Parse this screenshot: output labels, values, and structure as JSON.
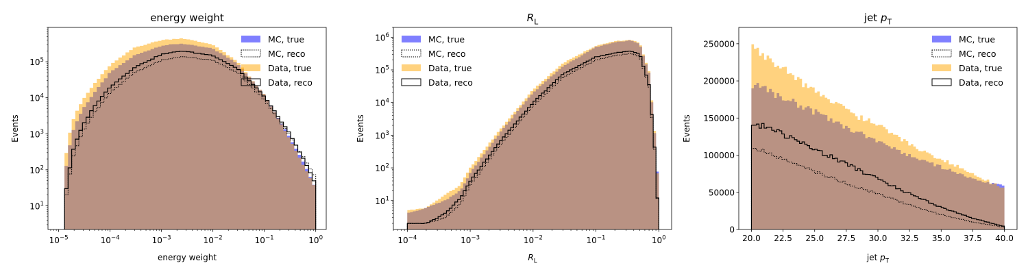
{
  "figure": {
    "background": "#ffffff"
  },
  "colors": {
    "mc_true": "#0000ff",
    "data_true": "#ffa500",
    "overlap": "#b99283",
    "reco_line": "#000000"
  },
  "legend_entries": [
    "MC, true",
    "MC, reco",
    "Data, true",
    "Data, reco"
  ],
  "chart_data": [
    {
      "type": "histogram",
      "title": "energy weight",
      "xlabel": "energy weight",
      "ylabel": "Events",
      "xscale": "log",
      "yscale": "log",
      "xlim": [
        6.2e-06,
        1.6
      ],
      "ylim": [
        2.2,
        900000.0
      ],
      "x_tick_labels": [
        "10^-5",
        "10^-4",
        "10^-3",
        "10^-2",
        "10^-1",
        "10^0"
      ],
      "y_tick_labels": [
        "10^1",
        "10^2",
        "10^3",
        "10^4",
        "10^5"
      ],
      "legend_position": "upper-right",
      "bin_range": [
        1.3e-05,
        1.0
      ],
      "series": [
        {
          "name": "MC, true",
          "style": "filled",
          "x": [
            1.3e-05,
            1.6e-05,
            2e-05,
            3e-05,
            5e-05,
            0.0001,
            0.0003,
            0.001,
            0.0025,
            0.01,
            0.03,
            0.1,
            0.3,
            0.6,
            1.0
          ],
          "y": [
            60,
            400,
            1500,
            5000,
            14000,
            50000,
            150000,
            280000,
            320000,
            230000,
            90000,
            12000,
            900,
            150,
            30
          ]
        },
        {
          "name": "MC, reco",
          "style": "dotted-step",
          "x": [
            1.3e-05,
            1.6e-05,
            2e-05,
            3e-05,
            5e-05,
            0.0001,
            0.0003,
            0.001,
            0.0025,
            0.01,
            0.03,
            0.1,
            0.3,
            0.6,
            1.0
          ],
          "y": [
            10,
            60,
            300,
            1200,
            4000,
            14000,
            50000,
            110000,
            140000,
            110000,
            50000,
            9000,
            1000,
            200,
            60
          ]
        },
        {
          "name": "Data, true",
          "style": "filled",
          "x": [
            1.3e-05,
            1.6e-05,
            2e-05,
            3e-05,
            5e-05,
            0.0001,
            0.0003,
            0.001,
            0.0025,
            0.01,
            0.03,
            0.1,
            0.3,
            0.6,
            1.0
          ],
          "y": [
            150,
            900,
            3000,
            9000,
            25000,
            80000,
            250000,
            400000,
            450000,
            300000,
            100000,
            12000,
            800,
            120,
            30
          ]
        },
        {
          "name": "Data, reco",
          "style": "solid-step",
          "x": [
            1.3e-05,
            1.6e-05,
            2e-05,
            3e-05,
            5e-05,
            0.0001,
            0.0003,
            0.001,
            0.0025,
            0.01,
            0.03,
            0.1,
            0.3,
            0.6,
            1.0
          ],
          "y": [
            15,
            90,
            450,
            1800,
            6000,
            20000,
            70000,
            160000,
            200000,
            150000,
            65000,
            11000,
            1100,
            180,
            40
          ]
        }
      ]
    },
    {
      "type": "histogram",
      "title": "R_L",
      "xlabel": "R_L",
      "ylabel": "Events",
      "xscale": "log",
      "yscale": "log",
      "xlim": [
        6e-05,
        1.6
      ],
      "ylim": [
        1.3,
        2000000.0
      ],
      "x_tick_labels": [
        "10^-4",
        "10^-3",
        "10^-2",
        "10^-1",
        "10^0"
      ],
      "y_tick_labels": [
        "10^1",
        "10^2",
        "10^3",
        "10^4",
        "10^5",
        "10^6"
      ],
      "legend_position": "upper-left",
      "bin_range": [
        0.0001,
        1.0
      ],
      "series": [
        {
          "name": "MC, true",
          "style": "filled",
          "x": [
            0.0001,
            0.0002,
            0.0004,
            0.0007,
            0.001,
            0.003,
            0.01,
            0.03,
            0.1,
            0.2,
            0.35,
            0.5,
            0.7,
            0.85,
            1.0
          ],
          "y": [
            4,
            6,
            10,
            20,
            70,
            1200,
            20000,
            130000,
            500000,
            700000,
            800000,
            600000,
            80000,
            1500,
            20
          ]
        },
        {
          "name": "MC, reco",
          "style": "dotted-step",
          "x": [
            0.0001,
            0.0002,
            0.0004,
            0.0007,
            0.001,
            0.003,
            0.01,
            0.03,
            0.1,
            0.2,
            0.35,
            0.5,
            0.7,
            0.85,
            1.0
          ],
          "y": [
            2,
            2,
            3,
            8,
            30,
            500,
            8000,
            60000,
            200000,
            270000,
            320000,
            260000,
            30000,
            500,
            2
          ]
        },
        {
          "name": "Data, true",
          "style": "filled",
          "x": [
            0.0001,
            0.0002,
            0.0004,
            0.0007,
            0.001,
            0.003,
            0.01,
            0.03,
            0.1,
            0.2,
            0.35,
            0.5,
            0.7,
            0.85,
            1.0
          ],
          "y": [
            5,
            6,
            15,
            30,
            100,
            1500,
            25000,
            160000,
            550000,
            750000,
            850000,
            650000,
            90000,
            1800,
            15
          ]
        },
        {
          "name": "Data, reco",
          "style": "solid-step",
          "x": [
            0.0001,
            0.0002,
            0.0004,
            0.0007,
            0.001,
            0.003,
            0.01,
            0.03,
            0.1,
            0.2,
            0.35,
            0.5,
            0.7,
            0.85,
            1.0
          ],
          "y": [
            2,
            2,
            4,
            12,
            40,
            650,
            10000,
            75000,
            250000,
            330000,
            380000,
            300000,
            35000,
            600,
            2
          ]
        }
      ]
    },
    {
      "type": "histogram",
      "title": "jet p_T",
      "xlabel": "jet p_T",
      "ylabel": "Events",
      "xscale": "linear",
      "yscale": "linear",
      "xlim": [
        19,
        41
      ],
      "ylim": [
        0,
        272000
      ],
      "x_ticks": [
        20.0,
        22.5,
        25.0,
        27.5,
        30.0,
        32.5,
        35.0,
        37.5,
        40.0
      ],
      "x_tick_labels": [
        "20.0",
        "22.5",
        "25.0",
        "27.5",
        "30.0",
        "32.5",
        "35.0",
        "37.5",
        "40.0"
      ],
      "y_ticks": [
        0,
        50000,
        100000,
        150000,
        200000,
        250000
      ],
      "y_tick_labels": [
        "0",
        "50000",
        "100000",
        "150000",
        "200000",
        "250000"
      ],
      "legend_position": "upper-right",
      "bin_range": [
        20.0,
        40.0
      ],
      "series": [
        {
          "name": "MC, true",
          "style": "filled",
          "x": [
            20,
            22.5,
            25,
            27.5,
            30,
            32.5,
            35,
            37.5,
            40
          ],
          "y": [
            195000,
            178000,
            158000,
            138000,
            118000,
            100000,
            84000,
            68000,
            58000
          ]
        },
        {
          "name": "MC, reco",
          "style": "dotted-step",
          "x": [
            20,
            22.5,
            25,
            27.5,
            30,
            32.5,
            35,
            37.5,
            40
          ],
          "y": [
            112000,
            95000,
            78000,
            62000,
            48000,
            33000,
            20000,
            10000,
            3000
          ]
        },
        {
          "name": "Data, true",
          "style": "filled",
          "x": [
            20,
            22.5,
            25,
            27.5,
            30,
            32.5,
            35,
            37.5,
            40
          ],
          "y": [
            245000,
            215000,
            185000,
            160000,
            140000,
            115000,
            95000,
            75000,
            55000
          ]
        },
        {
          "name": "Data, reco",
          "style": "solid-step",
          "x": [
            20,
            22.5,
            25,
            27.5,
            30,
            32.5,
            35,
            37.5,
            40
          ],
          "y": [
            145000,
            128000,
            108000,
            88000,
            68000,
            48000,
            30000,
            15000,
            4000
          ]
        }
      ]
    }
  ]
}
